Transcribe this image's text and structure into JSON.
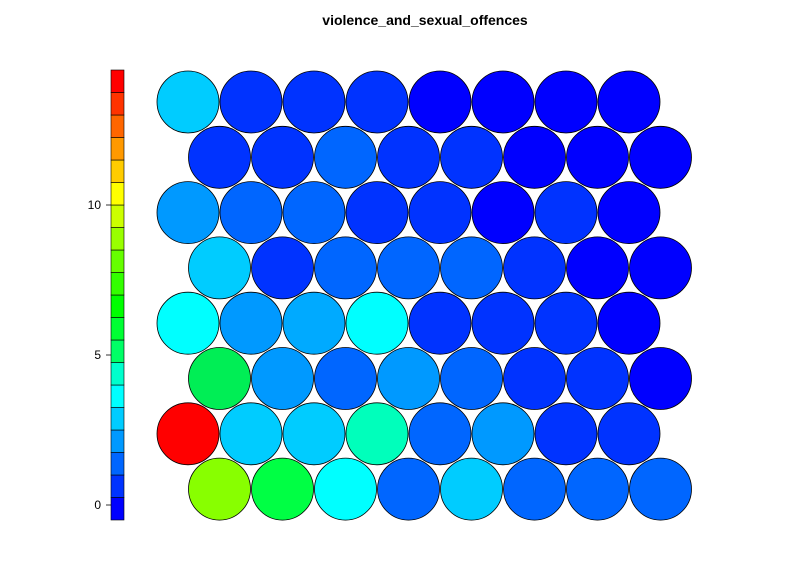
{
  "chart_data": {
    "type": "heatmap",
    "subtype": "som-hexagonal-property-map",
    "title": "violence_and_sexual_offences",
    "grid": {
      "rows": 8,
      "cols": 8,
      "layout": "hexagonal"
    },
    "row_order": "top-to-bottom",
    "values": [
      [
        3.1,
        0.9,
        0.9,
        0.9,
        0.1,
        0.1,
        0.1,
        0.1
      ],
      [
        0.9,
        0.9,
        1.5,
        0.9,
        0.9,
        0.1,
        0.1,
        0.1
      ],
      [
        2.0,
        1.5,
        1.5,
        0.9,
        0.9,
        0.1,
        0.9,
        0.1
      ],
      [
        3.1,
        0.6,
        1.5,
        1.5,
        1.5,
        0.9,
        0.1,
        0.1
      ],
      [
        3.6,
        2.0,
        2.5,
        3.6,
        0.6,
        0.6,
        0.9,
        0.1
      ],
      [
        5.6,
        2.0,
        1.5,
        2.5,
        1.5,
        0.9,
        0.9,
        0.1
      ],
      [
        13.6,
        3.1,
        3.1,
        4.1,
        1.5,
        2.0,
        0.9,
        0.9
      ],
      [
        8.6,
        6.1,
        3.6,
        1.5,
        3.1,
        1.5,
        1.5,
        1.5
      ]
    ],
    "colorbar": {
      "min": -0.5,
      "max": 14.5,
      "ticks": [
        0,
        5,
        10
      ],
      "tick_labels": [
        "0",
        "5",
        "10"
      ],
      "colors": [
        "#0000FF",
        "#0033FF",
        "#0066FF",
        "#0099FF",
        "#00CCFF",
        "#00FFFF",
        "#00FFCC",
        "#00FF66",
        "#00FF33",
        "#00FF00",
        "#33FF00",
        "#66FF00",
        "#99FF00",
        "#CCFF00",
        "#FFFF00",
        "#FFCC00",
        "#FF9900",
        "#FF6600",
        "#FF3300",
        "#FF0000"
      ]
    },
    "node_colors": [
      [
        "#00CCFF",
        "#0033FF",
        "#0033FF",
        "#0033FF",
        "#0000FF",
        "#0000FF",
        "#0000FF",
        "#0000FF"
      ],
      [
        "#0033FF",
        "#0033FF",
        "#0066FF",
        "#0033FF",
        "#0033FF",
        "#0000FF",
        "#0000FF",
        "#0000FF"
      ],
      [
        "#0099FF",
        "#0066FF",
        "#0066FF",
        "#0033FF",
        "#0033FF",
        "#0000FF",
        "#0033FF",
        "#0000FF"
      ],
      [
        "#00CCFF",
        "#0033FF",
        "#0066FF",
        "#0066FF",
        "#0066FF",
        "#0033FF",
        "#0000FF",
        "#0000FF"
      ],
      [
        "#00FFFF",
        "#0099FF",
        "#00AAFF",
        "#00FFFF",
        "#0033FF",
        "#0033FF",
        "#0033FF",
        "#0000FF"
      ],
      [
        "#00EE55",
        "#0099FF",
        "#0066FF",
        "#0099FF",
        "#0066FF",
        "#0033FF",
        "#0033FF",
        "#0000FF"
      ],
      [
        "#FF0000",
        "#00CCFF",
        "#00CCFF",
        "#00FFBB",
        "#0066FF",
        "#0099FF",
        "#0033FF",
        "#0033FF"
      ],
      [
        "#88FF00",
        "#00FF44",
        "#00FFFF",
        "#0066FF",
        "#00CCFF",
        "#0066FF",
        "#0066FF",
        "#0066FF"
      ]
    ]
  }
}
